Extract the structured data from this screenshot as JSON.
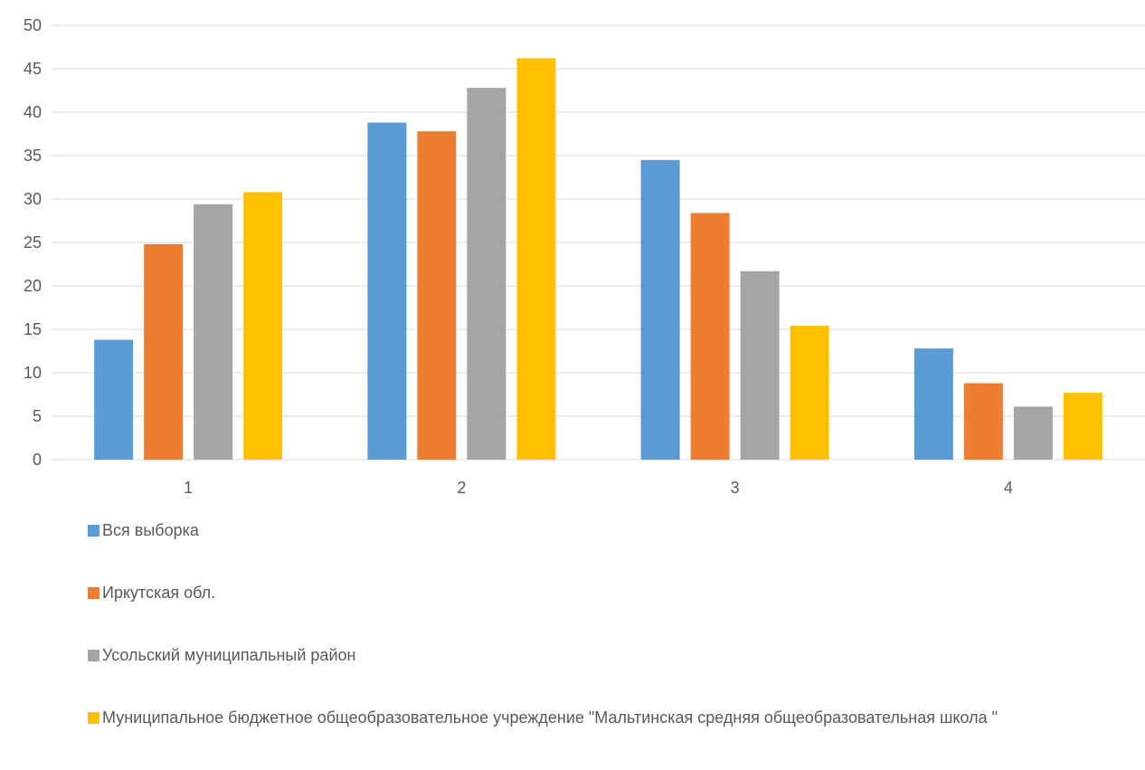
{
  "chart_data": {
    "type": "bar",
    "categories": [
      "1",
      "2",
      "3",
      "4"
    ],
    "series": [
      {
        "name": "Вся выборка",
        "color": "#5B9BD5",
        "values": [
          13.8,
          38.8,
          34.5,
          12.8
        ]
      },
      {
        "name": "Иркутская обл.",
        "color": "#ED7D31",
        "values": [
          24.8,
          37.8,
          28.4,
          8.8
        ]
      },
      {
        "name": "Усольский муниципальный район",
        "color": "#A5A5A5",
        "values": [
          29.4,
          42.8,
          21.7,
          6.1
        ]
      },
      {
        "name": "Муниципальное бюджетное общеобразовательное учреждение \"Мальтинская средняя общеобразовательная школа \"",
        "color": "#FFC000",
        "values": [
          30.8,
          46.2,
          15.4,
          7.7
        ]
      }
    ],
    "title": "",
    "xlabel": "",
    "ylabel": "",
    "ylim": [
      0,
      50
    ],
    "yticks": [
      "0",
      "5",
      "10",
      "15",
      "20",
      "25",
      "30",
      "35",
      "40",
      "45",
      "50"
    ],
    "grid": true,
    "legend_position": "bottom"
  }
}
